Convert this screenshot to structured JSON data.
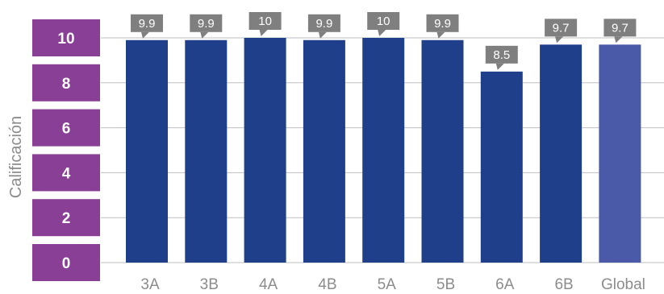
{
  "chart_data": {
    "type": "bar",
    "title": "",
    "xlabel": "",
    "ylabel": "Calificación",
    "ylim": [
      0,
      10
    ],
    "yticks": [
      0,
      2,
      4,
      6,
      8,
      10
    ],
    "grid": true,
    "categories": [
      "3A",
      "3B",
      "4A",
      "4B",
      "5A",
      "5B",
      "6A",
      "6B",
      "Global"
    ],
    "values": [
      9.9,
      9.9,
      10,
      9.9,
      10,
      9.9,
      8.5,
      9.7,
      9.7
    ],
    "data_labels": [
      "9.9",
      "9.9",
      "10",
      "9.9",
      "10",
      "9.9",
      "8.5",
      "9.7",
      "9.7"
    ],
    "colors": {
      "bar": "#1f3f8a",
      "highlight_bar": "#4a5aa8",
      "ytick_box": "#8a3f96",
      "label_box": "#7f7f7f"
    }
  }
}
